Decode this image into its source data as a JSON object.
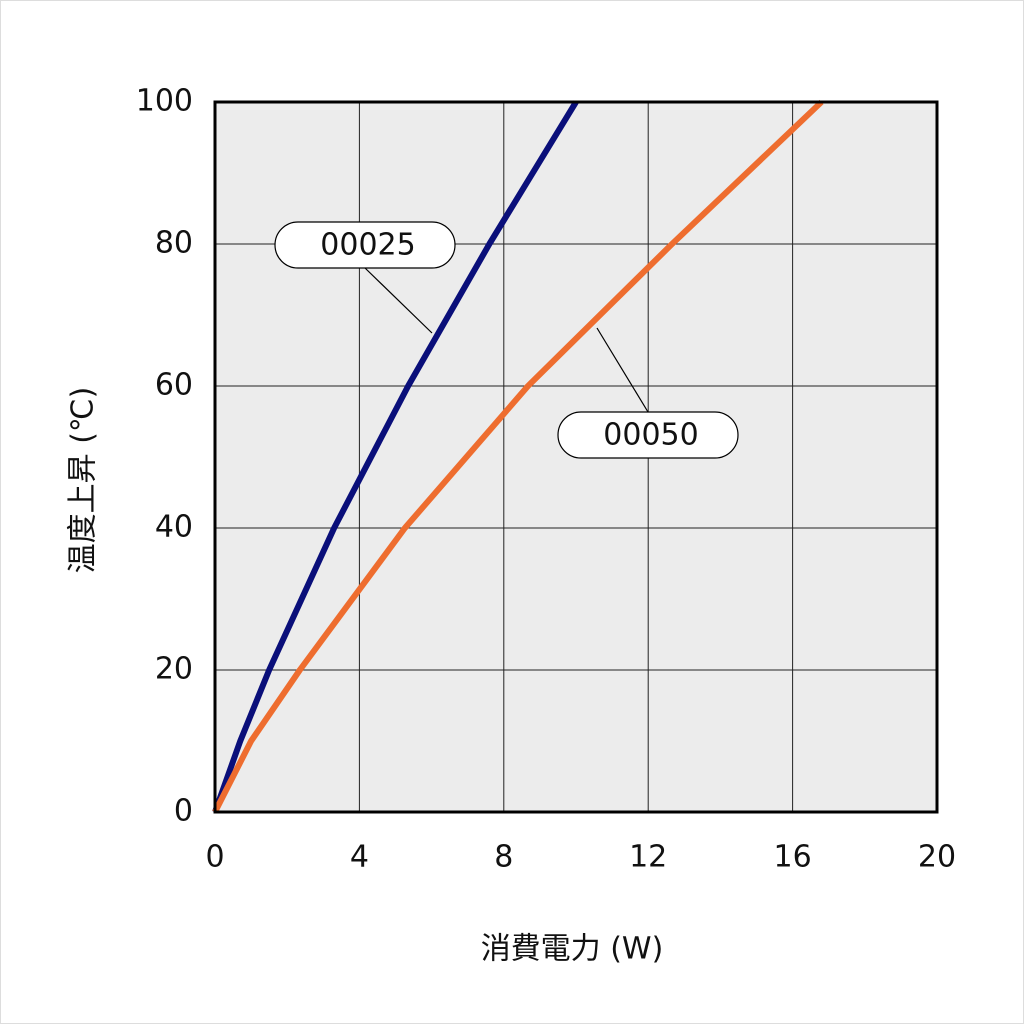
{
  "chart_data": {
    "type": "line",
    "xlabel": "消費電力 (W)",
    "ylabel": "温度上昇 (℃)",
    "xlim": [
      0,
      20
    ],
    "ylim": [
      0,
      100
    ],
    "xticks": [
      0,
      4,
      8,
      12,
      16,
      20
    ],
    "yticks": [
      0,
      20,
      40,
      60,
      80,
      100
    ],
    "grid": true,
    "series": [
      {
        "name": "00025",
        "color": "#0a0f7a",
        "x": [
          0,
          0.7,
          1.5,
          3.3,
          5.35,
          7.6,
          10
        ],
        "values": [
          0,
          10,
          20,
          40,
          60,
          80,
          100
        ]
      },
      {
        "name": "00050",
        "color": "#ee6d2f",
        "x": [
          0,
          1.0,
          2.35,
          5.26,
          8.67,
          12.66,
          16.8
        ],
        "values": [
          0,
          10,
          20,
          40,
          60,
          80,
          100
        ]
      }
    ]
  }
}
